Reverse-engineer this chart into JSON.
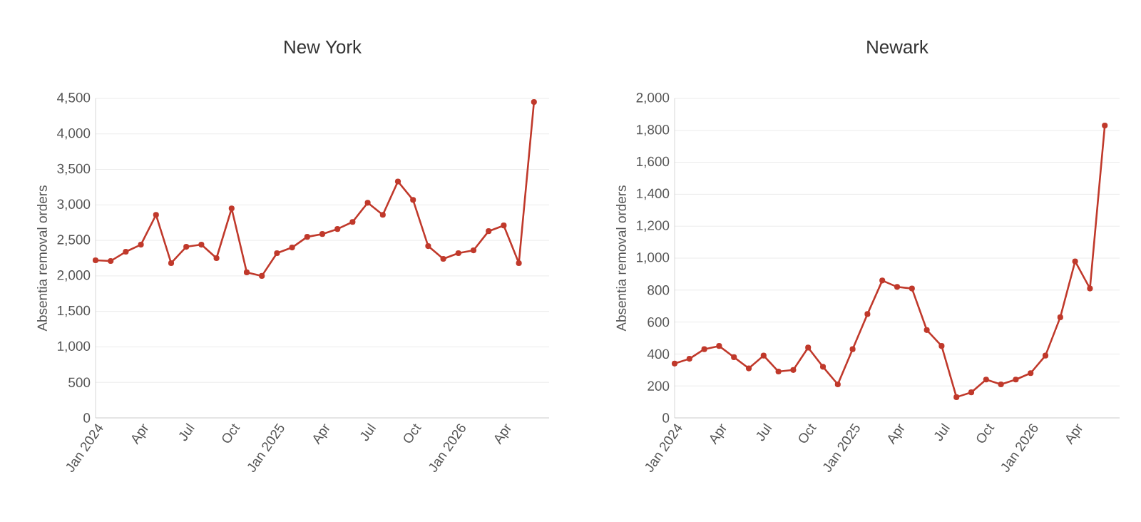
{
  "chart_data": [
    {
      "type": "line",
      "title": "New York",
      "ylabel": "Absentia removal orders",
      "x": [
        "2024-01",
        "2024-02",
        "2024-03",
        "2024-04",
        "2024-05",
        "2024-06",
        "2024-07",
        "2024-08",
        "2024-09",
        "2024-10",
        "2024-11",
        "2024-12",
        "2025-01",
        "2025-02",
        "2025-03",
        "2025-04",
        "2025-05",
        "2025-06",
        "2025-07",
        "2025-08",
        "2025-09",
        "2025-10",
        "2025-11",
        "2025-12",
        "2026-01",
        "2026-02",
        "2026-03",
        "2026-04",
        "2026-05",
        "2026-06"
      ],
      "series": [
        {
          "color": "#c0392b",
          "values": [
            2220,
            2210,
            2340,
            2440,
            2860,
            2180,
            2410,
            2440,
            2250,
            2950,
            2050,
            2000,
            2320,
            2400,
            2550,
            2590,
            2660,
            2760,
            3030,
            2860,
            3330,
            3070,
            2420,
            2240,
            2320,
            2360,
            2630,
            2710,
            2180,
            4450
          ]
        }
      ],
      "xlim": [
        "2024-01",
        "2026-07"
      ],
      "xticks": [
        {
          "value": "2024-01",
          "label": "Jan 2024"
        },
        {
          "value": "2024-04",
          "label": "Apr"
        },
        {
          "value": "2024-07",
          "label": "Jul"
        },
        {
          "value": "2024-10",
          "label": "Oct"
        },
        {
          "value": "2025-01",
          "label": "Jan 2025"
        },
        {
          "value": "2025-04",
          "label": "Apr"
        },
        {
          "value": "2025-07",
          "label": "Jul"
        },
        {
          "value": "2025-10",
          "label": "Oct"
        },
        {
          "value": "2026-01",
          "label": "Jan 2026"
        },
        {
          "value": "2026-04",
          "label": "Apr"
        }
      ],
      "ylim": [
        0,
        4500
      ],
      "yticks": [
        0,
        {
          "value": 500,
          "label": "500"
        },
        {
          "value": 1000,
          "label": "1,000"
        },
        {
          "value": 1500,
          "label": "1,500"
        },
        {
          "value": 2000,
          "label": "2,000"
        },
        {
          "value": 2500,
          "label": "2,500"
        },
        {
          "value": 3000,
          "label": "3,000"
        },
        {
          "value": 3500,
          "label": "3,500"
        },
        {
          "value": 4000,
          "label": "4,000"
        },
        {
          "value": 4500,
          "label": "4,500"
        }
      ],
      "grid": "y",
      "marker": "circle",
      "line_style": "solid"
    },
    {
      "type": "line",
      "title": "Newark",
      "ylabel": "Absentia removal orders",
      "x": [
        "2024-01",
        "2024-02",
        "2024-03",
        "2024-04",
        "2024-05",
        "2024-06",
        "2024-07",
        "2024-08",
        "2024-09",
        "2024-10",
        "2024-11",
        "2024-12",
        "2025-01",
        "2025-02",
        "2025-03",
        "2025-04",
        "2025-05",
        "2025-06",
        "2025-07",
        "2025-08",
        "2025-09",
        "2025-10",
        "2025-11",
        "2025-12",
        "2026-01",
        "2026-02",
        "2026-03",
        "2026-04",
        "2026-05",
        "2026-06"
      ],
      "series": [
        {
          "color": "#c0392b",
          "values": [
            340,
            370,
            430,
            450,
            380,
            310,
            390,
            290,
            300,
            440,
            320,
            210,
            430,
            650,
            860,
            820,
            810,
            550,
            450,
            130,
            160,
            240,
            210,
            240,
            280,
            390,
            630,
            980,
            810,
            1830
          ]
        }
      ],
      "xlim": [
        "2024-01",
        "2026-07"
      ],
      "xticks": [
        {
          "value": "2024-01",
          "label": "Jan 2024"
        },
        {
          "value": "2024-04",
          "label": "Apr"
        },
        {
          "value": "2024-07",
          "label": "Jul"
        },
        {
          "value": "2024-10",
          "label": "Oct"
        },
        {
          "value": "2025-01",
          "label": "Jan 2025"
        },
        {
          "value": "2025-04",
          "label": "Apr"
        },
        {
          "value": "2025-07",
          "label": "Jul"
        },
        {
          "value": "2025-10",
          "label": "Oct"
        },
        {
          "value": "2026-01",
          "label": "Jan 2026"
        },
        {
          "value": "2026-04",
          "label": "Apr"
        }
      ],
      "ylim": [
        0,
        2000
      ],
      "yticks": [
        0,
        {
          "value": 200,
          "label": "200"
        },
        {
          "value": 400,
          "label": "400"
        },
        {
          "value": 600,
          "label": "600"
        },
        {
          "value": 800,
          "label": "800"
        },
        {
          "value": 1000,
          "label": "1,000"
        },
        {
          "value": 1200,
          "label": "1,200"
        },
        {
          "value": 1400,
          "label": "1,400"
        },
        {
          "value": 1600,
          "label": "1,600"
        },
        {
          "value": 1800,
          "label": "1,800"
        },
        {
          "value": 2000,
          "label": "2,000"
        }
      ],
      "grid": "y",
      "marker": "circle",
      "line_style": "solid"
    }
  ]
}
